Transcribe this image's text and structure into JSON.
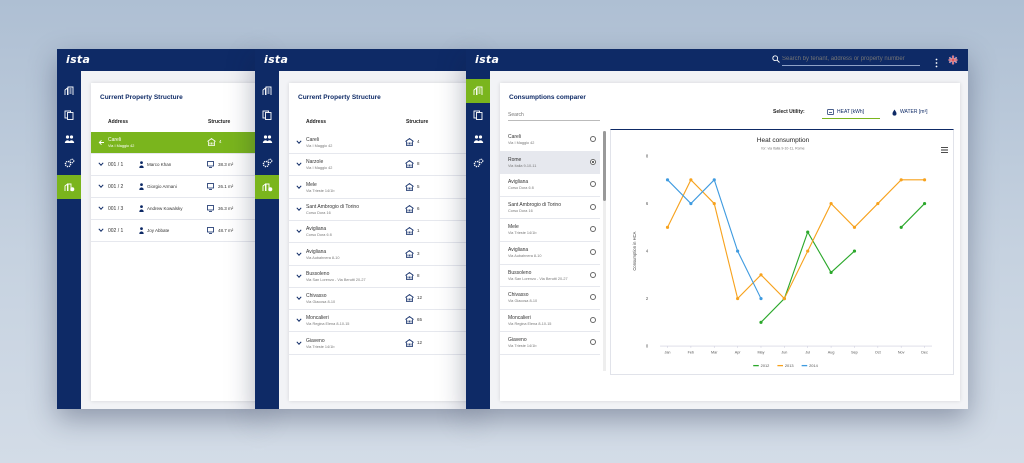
{
  "brand": {
    "logo": "ista"
  },
  "colors": {
    "navy": "#0e2a66",
    "green": "#7ab51d",
    "series2012": "#2ba82b",
    "series2013": "#f7a21d",
    "series2014": "#3f9be0"
  },
  "window1": {
    "title": "Current Property Structure",
    "col_address": "Address",
    "col_structure": "Structure",
    "rows": [
      {
        "name": "Careli",
        "sub": "Via I Maggio 42",
        "value": "4",
        "selected": true
      },
      {
        "num": "001 / 1",
        "person": "Marco Khan",
        "value": "38.3 m²"
      },
      {
        "num": "001 / 2",
        "person": "Giorgio Armani",
        "value": "26.1 m²"
      },
      {
        "num": "001 / 3",
        "person": "Andrew Kowalsky",
        "value": "36.3 m²"
      },
      {
        "num": "002 / 1",
        "person": "Joy Abbate",
        "value": "48.7 m²"
      }
    ]
  },
  "window2": {
    "title": "Current Property Structure",
    "col_address": "Address",
    "col_structure": "Structure",
    "rows": [
      {
        "name": "Careli",
        "sub": "Via I Maggio 42",
        "value": "4"
      },
      {
        "name": "Narzole",
        "sub": "Via I Maggio 42",
        "value": "8"
      },
      {
        "name": "Mele",
        "sub": "Via Trieste 14/1b",
        "value": "5"
      },
      {
        "name": "Sant Ambrogio di Torino",
        "sub": "Corso Dora 16",
        "value": "6"
      },
      {
        "name": "Avigliana",
        "sub": "Corso Dora 6 8",
        "value": "1"
      },
      {
        "name": "Avigliana",
        "sub": "Via Aubahnera 8-10",
        "value": "3"
      },
      {
        "name": "Bussoleno",
        "sub": "Via San Lorenzo - Via Berutti 20-27",
        "value": "8"
      },
      {
        "name": "Chivasso",
        "sub": "Via Giacosa 8-10",
        "value": "12"
      },
      {
        "name": "Moncalieri",
        "sub": "Via Regina Elena 8-10-15",
        "value": "65"
      },
      {
        "name": "Giaveno",
        "sub": "Via Trieste 14/1b",
        "value": "12"
      }
    ]
  },
  "window3": {
    "title": "Consumptions comparer",
    "search_placeholder": "Search by tenant, address or property number",
    "list_search_placeholder": "Search",
    "select_utility_label": "Select Utility:",
    "tab_heat": "HEAT [kWh]",
    "tab_water": "WATER [m³]",
    "items": [
      {
        "name": "Careli",
        "sub": "Via I Maggio 42"
      },
      {
        "name": "Rome",
        "sub": "Via Italia 9-10-11",
        "selected": true
      },
      {
        "name": "Avigliana",
        "sub": "Corso Dora 6 8"
      },
      {
        "name": "Sant Ambrogio di Torino",
        "sub": "Corso Dora 16"
      },
      {
        "name": "Mele",
        "sub": "Via Trieste 14/1b"
      },
      {
        "name": "Avigliana",
        "sub": "Via Aubahnera 8-10"
      },
      {
        "name": "Bussoleno",
        "sub": "Via San Lorenzo - Via Berutti 20-27"
      },
      {
        "name": "Chivasso",
        "sub": "Via Giacosa 8-10"
      },
      {
        "name": "Moncalieri",
        "sub": "Via Regina Elena 8-10-15"
      },
      {
        "name": "Giaveno",
        "sub": "Via Trieste 14/1b"
      }
    ]
  },
  "chart_data": {
    "type": "line",
    "title": "Heat consumption",
    "subtitle": "for: via Italia 9-10-11, Rome",
    "ylabel": "Consumption in HCA",
    "xlabel": "",
    "categories": [
      "Jan",
      "Feb",
      "Mar",
      "Apr",
      "May",
      "Jun",
      "Jul",
      "Aug",
      "Sep",
      "Oct",
      "Nov",
      "Dec"
    ],
    "ylim": [
      0,
      8
    ],
    "yticks": [
      0,
      2,
      4,
      6,
      8
    ],
    "grid": false,
    "legend": "bottom-center",
    "series": [
      {
        "name": "2012",
        "color": "#2ba82b",
        "values": [
          null,
          null,
          null,
          null,
          1.0,
          2.0,
          4.8,
          3.1,
          4.0,
          null,
          5.0,
          6.0
        ]
      },
      {
        "name": "2013",
        "color": "#f7a21d",
        "values": [
          5.0,
          7.0,
          6.0,
          2.0,
          3.0,
          2.0,
          4.0,
          6.0,
          5.0,
          6.0,
          7.0,
          7.0
        ]
      },
      {
        "name": "2014",
        "color": "#3f9be0",
        "values": [
          7.0,
          6.0,
          7.0,
          4.0,
          2.0,
          null,
          null,
          null,
          null,
          null,
          null,
          null
        ]
      }
    ]
  }
}
